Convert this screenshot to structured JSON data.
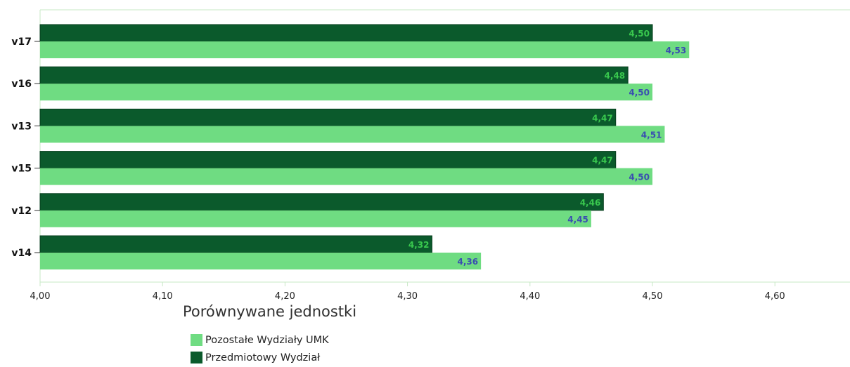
{
  "chart_data": {
    "type": "bar",
    "orientation": "horizontal",
    "categories": [
      "v17",
      "v16",
      "v13",
      "v15",
      "v12",
      "v14"
    ],
    "series": [
      {
        "name": "Przedmiotowy Wydział",
        "values": [
          4.5,
          4.48,
          4.47,
          4.47,
          4.46,
          4.32
        ],
        "labels": [
          "4,50",
          "4,48",
          "4,47",
          "4,47",
          "4,46",
          "4,32"
        ]
      },
      {
        "name": "Pozostałe Wydziały UMK",
        "values": [
          4.53,
          4.5,
          4.51,
          4.5,
          4.45,
          4.36
        ],
        "labels": [
          "4,53",
          "4,50",
          "4,51",
          "4,50",
          "4,45",
          "4,36"
        ]
      }
    ],
    "xlim": [
      4.0,
      4.66
    ],
    "ticks": [
      4.0,
      4.1,
      4.2,
      4.3,
      4.4,
      4.5,
      4.6
    ],
    "tick_labels": [
      "4,00",
      "4,10",
      "4,20",
      "4,30",
      "4,40",
      "4,50",
      "4,60"
    ],
    "colors": {
      "Przedmiotowy Wydział": "#0b5a2c",
      "Pozostałe Wydziały UMK": "#6fdc82",
      "dark_label": "#39c84e",
      "light_label": "#3a4fb0",
      "axis": "#c7e8c5"
    },
    "grid": false
  },
  "legend": {
    "title": "Porównywane jednostki",
    "items": [
      {
        "label": "Pozostałe Wydziały UMK",
        "color": "#6fdc82"
      },
      {
        "label": "Przedmiotowy Wydział",
        "color": "#0b5a2c"
      }
    ]
  }
}
